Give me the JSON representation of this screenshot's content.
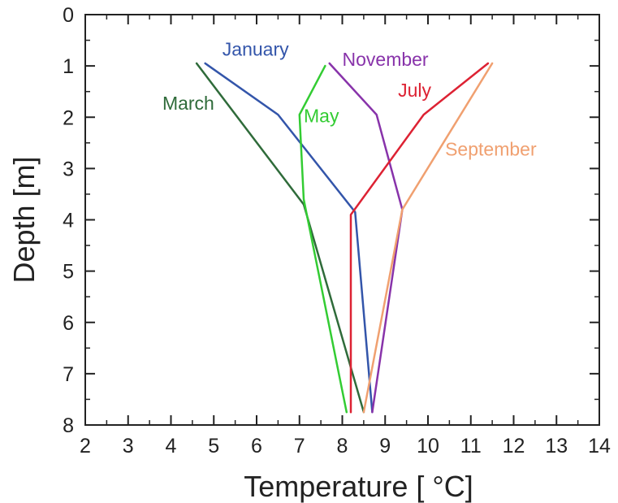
{
  "chart_data": {
    "type": "line",
    "title": "",
    "xlabel": "Temperature [ °C]",
    "ylabel": "Depth [m]",
    "xlim": [
      2,
      14
    ],
    "ylim": [
      0,
      8
    ],
    "y_inverted": true,
    "x_ticks": [
      "2",
      "3",
      "4",
      "5",
      "6",
      "7",
      "8",
      "9",
      "10",
      "11",
      "12",
      "13",
      "14"
    ],
    "y_ticks": [
      "0",
      "1",
      "2",
      "3",
      "4",
      "5",
      "6",
      "7",
      "8"
    ],
    "grid": false,
    "series": [
      {
        "name": "January",
        "color": "#3355aa",
        "points": [
          [
            4.8,
            0.95
          ],
          [
            6.5,
            1.95
          ],
          [
            8.3,
            3.85
          ],
          [
            8.7,
            7.75
          ]
        ]
      },
      {
        "name": "March",
        "color": "#2f6b3a",
        "points": [
          [
            4.6,
            0.95
          ],
          [
            7.1,
            3.7
          ],
          [
            8.5,
            7.75
          ]
        ]
      },
      {
        "name": "May",
        "color": "#33cc33",
        "points": [
          [
            7.6,
            1.0
          ],
          [
            7.0,
            1.95
          ],
          [
            7.1,
            3.6
          ],
          [
            8.1,
            7.75
          ]
        ]
      },
      {
        "name": "November",
        "color": "#8833aa",
        "points": [
          [
            7.7,
            0.95
          ],
          [
            8.8,
            1.95
          ],
          [
            9.4,
            3.8
          ],
          [
            8.7,
            7.75
          ]
        ]
      },
      {
        "name": "July",
        "color": "#dd2233",
        "points": [
          [
            11.4,
            0.95
          ],
          [
            9.9,
            1.95
          ],
          [
            8.2,
            3.9
          ],
          [
            8.2,
            7.75
          ]
        ]
      },
      {
        "name": "September",
        "color": "#f0a070",
        "points": [
          [
            11.5,
            0.95
          ],
          [
            9.4,
            3.8
          ],
          [
            8.5,
            7.75
          ]
        ]
      }
    ],
    "annotations": [
      {
        "text": "January",
        "x": 5.2,
        "y": 0.8,
        "color": "#3355aa"
      },
      {
        "text": "March",
        "x": 3.8,
        "y": 1.85,
        "color": "#2f6b3a"
      },
      {
        "text": "May",
        "x": 7.1,
        "y": 2.1,
        "color": "#33cc33"
      },
      {
        "text": "November",
        "x": 8.0,
        "y": 1.0,
        "color": "#8833aa"
      },
      {
        "text": "July",
        "x": 9.3,
        "y": 1.6,
        "color": "#dd2233"
      },
      {
        "text": "September",
        "x": 10.4,
        "y": 2.75,
        "color": "#f0a070"
      }
    ]
  }
}
